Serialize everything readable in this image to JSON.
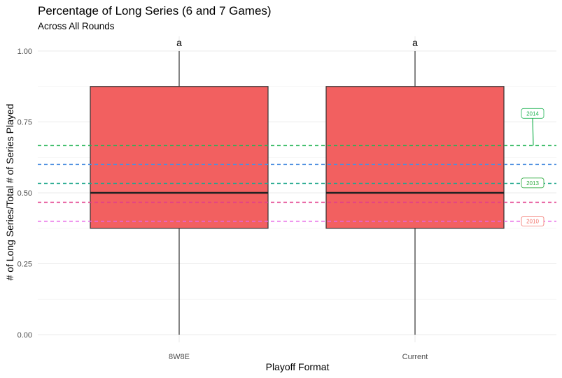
{
  "chart_data": {
    "type": "box",
    "title": "Percentage of Long Series (6 and 7 Games)",
    "subtitle": "Across All Rounds",
    "xlabel": "Playoff Format",
    "ylabel": "# of Long Series/Total # of Series Played",
    "ylim": [
      0,
      1
    ],
    "yticks": [
      "0.00",
      "0.25",
      "0.50",
      "0.75",
      "1.00"
    ],
    "yticks_values": [
      0,
      0.25,
      0.5,
      0.75,
      1.0
    ],
    "grid": true,
    "categories": [
      "8W8E",
      "Current"
    ],
    "boxes": [
      {
        "category": "8W8E",
        "min": 0,
        "q1": 0.375,
        "median": 0.5,
        "q3": 0.875,
        "max": 1.0,
        "letter": "a"
      },
      {
        "category": "Current",
        "min": 0,
        "q1": 0.375,
        "median": 0.5,
        "q3": 0.875,
        "max": 1.0,
        "letter": "a"
      }
    ],
    "box_fill": "#F26060",
    "reference_lines": [
      {
        "value": 0.6667,
        "color": "#22B455"
      },
      {
        "value": 0.6,
        "color": "#4C8FE0"
      },
      {
        "value": 0.5333,
        "color": "#1FA78C"
      },
      {
        "value": 0.4667,
        "color": "#E23D8C"
      },
      {
        "value": 0.4,
        "color": "#E866E6"
      }
    ],
    "year_labels": [
      {
        "label": "2014",
        "value": 0.6667,
        "label_at": 0.78,
        "color": "#22B455"
      },
      {
        "label": "2013",
        "value": 0.5333,
        "label_at": 0.535,
        "color": "#2AAA3C"
      },
      {
        "label": "2010",
        "value": 0.4,
        "label_at": 0.4,
        "color": "#F2726A"
      }
    ]
  }
}
